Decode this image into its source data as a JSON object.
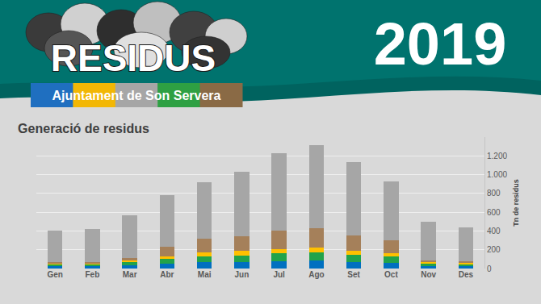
{
  "header": {
    "logo_title": "RESIDUS",
    "logo_subtitle": "Ajuntament de Son Servera",
    "year": "2019"
  },
  "chart_data": {
    "type": "bar",
    "stacked": true,
    "title": "Generació de residus",
    "y_label": "Tn de residus",
    "categories": [
      "Gen",
      "Feb",
      "Mar",
      "Abr",
      "Mai",
      "Jun",
      "Jul",
      "Ago",
      "Set",
      "Oct",
      "Nov",
      "Des"
    ],
    "series": [
      {
        "color": "#0070c0",
        "values": [
          25,
          25,
          35,
          50,
          65,
          70,
          80,
          90,
          70,
          60,
          30,
          25
        ]
      },
      {
        "color": "#22a34a",
        "values": [
          20,
          20,
          30,
          50,
          65,
          70,
          80,
          80,
          75,
          65,
          25,
          25
        ]
      },
      {
        "color": "#ffc000",
        "values": [
          10,
          12,
          20,
          30,
          40,
          45,
          50,
          55,
          45,
          40,
          15,
          12
        ]
      },
      {
        "color": "#a5805a",
        "values": [
          10,
          10,
          30,
          100,
          150,
          160,
          190,
          205,
          160,
          135,
          15,
          13
        ]
      },
      {
        "color": "#a6a6a6",
        "values": [
          340,
          358,
          455,
          555,
          600,
          690,
          825,
          880,
          785,
          625,
          410,
          365
        ]
      }
    ],
    "ylim": [
      0,
      1400
    ],
    "yticks": [
      0,
      200,
      400,
      600,
      800,
      {
        "value": 1000,
        "label": "1.000"
      },
      {
        "value": 1200,
        "label": "1.200"
      }
    ],
    "grid": true
  }
}
